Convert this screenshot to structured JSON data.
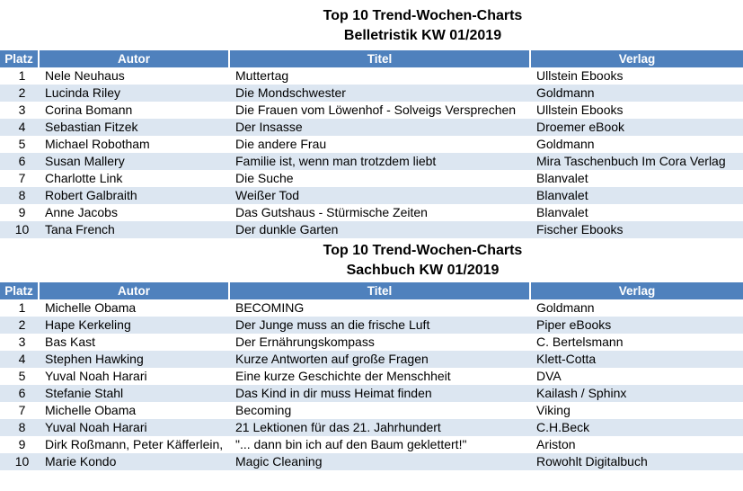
{
  "colors": {
    "header_bg": "#4F81BD",
    "header_text": "#FFFFFF",
    "band_bg": "#DCE6F1",
    "body_text": "#000000"
  },
  "tables": [
    {
      "title_line1": "Top 10 Trend-Wochen-Charts",
      "title_line2": "Belletristik KW 01/2019",
      "columns": [
        "Platz",
        "Autor",
        "Titel",
        "Verlag"
      ],
      "rows": [
        {
          "platz": "1",
          "autor": "Nele Neuhaus",
          "titel": "Muttertag",
          "verlag": "Ullstein Ebooks"
        },
        {
          "platz": "2",
          "autor": "Lucinda Riley",
          "titel": "Die Mondschwester",
          "verlag": "Goldmann"
        },
        {
          "platz": "3",
          "autor": "Corina Bomann",
          "titel": "Die Frauen vom Löwenhof - Solveigs Versprechen",
          "verlag": "Ullstein Ebooks"
        },
        {
          "platz": "4",
          "autor": "Sebastian Fitzek",
          "titel": "Der Insasse",
          "verlag": "Droemer eBook"
        },
        {
          "platz": "5",
          "autor": "Michael Robotham",
          "titel": "Die andere Frau",
          "verlag": "Goldmann"
        },
        {
          "platz": "6",
          "autor": "Susan Mallery",
          "titel": "Familie ist, wenn man trotzdem liebt",
          "verlag": "Mira Taschenbuch Im Cora Verlag"
        },
        {
          "platz": "7",
          "autor": "Charlotte Link",
          "titel": "Die Suche",
          "verlag": "Blanvalet"
        },
        {
          "platz": "8",
          "autor": "Robert Galbraith",
          "titel": "Weißer Tod",
          "verlag": "Blanvalet"
        },
        {
          "platz": "9",
          "autor": "Anne Jacobs",
          "titel": "Das Gutshaus - Stürmische Zeiten",
          "verlag": "Blanvalet"
        },
        {
          "platz": "10",
          "autor": "Tana French",
          "titel": "Der dunkle Garten",
          "verlag": "Fischer Ebooks"
        }
      ]
    },
    {
      "title_line1": "Top 10 Trend-Wochen-Charts",
      "title_line2": "Sachbuch KW 01/2019",
      "columns": [
        "Platz",
        "Autor",
        "Titel",
        "Verlag"
      ],
      "rows": [
        {
          "platz": "1",
          "autor": "Michelle Obama",
          "titel": "BECOMING",
          "verlag": "Goldmann"
        },
        {
          "platz": "2",
          "autor": "Hape Kerkeling",
          "titel": "Der Junge muss an die frische Luft",
          "verlag": "Piper eBooks"
        },
        {
          "platz": "3",
          "autor": "Bas Kast",
          "titel": "Der Ernährungskompass",
          "verlag": "C. Bertelsmann"
        },
        {
          "platz": "4",
          "autor": "Stephen Hawking",
          "titel": "Kurze Antworten auf große Fragen",
          "verlag": "Klett-Cotta"
        },
        {
          "platz": "5",
          "autor": "Yuval Noah Harari",
          "titel": "Eine kurze Geschichte der Menschheit",
          "verlag": "DVA"
        },
        {
          "platz": "6",
          "autor": "Stefanie Stahl",
          "titel": "Das Kind in dir muss Heimat finden",
          "verlag": "Kailash / Sphinx"
        },
        {
          "platz": "7",
          "autor": "Michelle Obama",
          "titel": "Becoming",
          "verlag": "Viking"
        },
        {
          "platz": "8",
          "autor": "Yuval Noah Harari",
          "titel": "21 Lektionen für das 21. Jahrhundert",
          "verlag": "C.H.Beck"
        },
        {
          "platz": "9",
          "autor": "Dirk Roßmann, Peter Käfferlein,",
          "titel": "\"... dann bin ich auf den Baum geklettert!\"",
          "verlag": "Ariston"
        },
        {
          "platz": "10",
          "autor": "Marie Kondo",
          "titel": "Magic Cleaning",
          "verlag": "Rowohlt Digitalbuch"
        }
      ]
    }
  ]
}
